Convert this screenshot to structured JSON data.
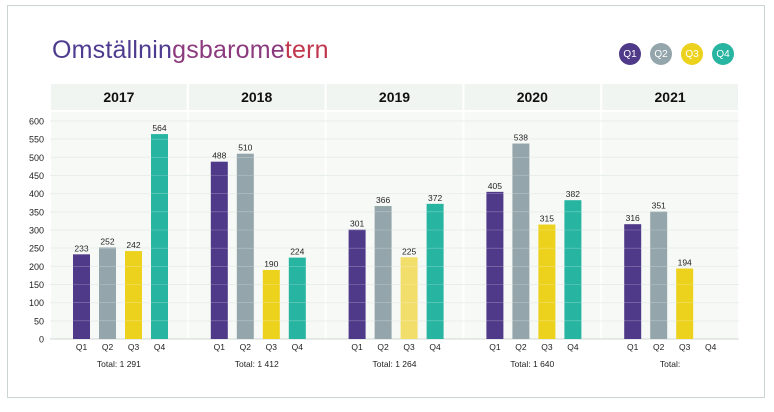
{
  "title": "Omställningsbarometern",
  "legend": [
    {
      "label": "Q1",
      "color": "#4f3a8a"
    },
    {
      "label": "Q2",
      "color": "#94a6ab"
    },
    {
      "label": "Q3",
      "color": "#ecd11d"
    },
    {
      "label": "Q4",
      "color": "#27b5a1"
    }
  ],
  "chart_data": {
    "type": "bar",
    "ylim": [
      0,
      600
    ],
    "yticks": [
      0,
      50,
      100,
      150,
      200,
      250,
      300,
      350,
      400,
      450,
      500,
      550,
      600
    ],
    "grid": true,
    "legend_position": "top-right",
    "categories": [
      "Q1",
      "Q2",
      "Q3",
      "Q4"
    ],
    "groups": [
      {
        "year": "2017",
        "total": "Total: 1 291",
        "values": [
          233,
          252,
          242,
          564
        ],
        "labels": [
          "233",
          "252",
          "242",
          "564"
        ]
      },
      {
        "year": "2018",
        "total": "Total: 1 412",
        "values": [
          488,
          510,
          190,
          224
        ],
        "labels": [
          "488",
          "510",
          "190",
          "224"
        ]
      },
      {
        "year": "2019",
        "total": "Total: 1 264",
        "values": [
          301,
          366,
          225,
          372
        ],
        "labels": [
          "301",
          "366",
          "225",
          "372"
        ]
      },
      {
        "year": "2020",
        "total": "Total: 1 640",
        "values": [
          405,
          538,
          315,
          382
        ],
        "labels": [
          "405",
          "538",
          "315",
          "382"
        ]
      },
      {
        "year": "2021",
        "total": "Total:",
        "values": [
          316,
          351,
          194,
          null
        ],
        "labels": [
          "316",
          "351",
          "194",
          ""
        ]
      }
    ],
    "colors": [
      "#4f3a8a",
      "#94a6ab",
      "#ecd11d",
      "#27b5a1"
    ],
    "highlight_color": "#f2de6a"
  }
}
